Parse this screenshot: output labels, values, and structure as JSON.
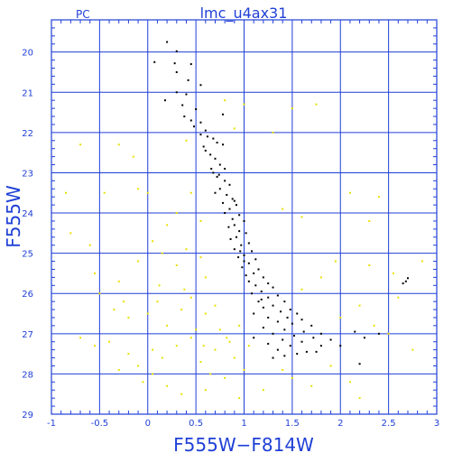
{
  "chart_data": {
    "type": "scatter",
    "title": "lmc_u4ax31",
    "subtitle": "PC",
    "xlabel": "F555W−F814W",
    "ylabel": "F555W",
    "xlim": [
      -1,
      3
    ],
    "ylim": [
      29,
      19.2
    ],
    "y_axis_inverted": true,
    "grid": true,
    "x_ticks": [
      -1,
      -0.5,
      0,
      0.5,
      1,
      1.5,
      2,
      2.5,
      3
    ],
    "x_tick_labels": [
      "-1",
      "-0.5",
      "0",
      "0.5",
      "1",
      "1.5",
      "2",
      "2.5",
      "3"
    ],
    "y_ticks": [
      20,
      21,
      22,
      23,
      24,
      25,
      26,
      27,
      28,
      29
    ],
    "y_tick_labels": [
      "20",
      "21",
      "22",
      "23",
      "24",
      "25",
      "26",
      "27",
      "28",
      "29"
    ],
    "colors": {
      "frame": "#1f3fd6",
      "series_main": "#000000",
      "series_field": "#e8e000"
    },
    "series": [
      {
        "color": "#000000",
        "points": [
          [
            0.2,
            19.75
          ],
          [
            0.3,
            19.98
          ],
          [
            0.07,
            20.25
          ],
          [
            0.28,
            20.28
          ],
          [
            0.45,
            20.3
          ],
          [
            0.3,
            20.5
          ],
          [
            0.42,
            20.7
          ],
          [
            0.55,
            20.82
          ],
          [
            0.3,
            21.0
          ],
          [
            0.4,
            21.05
          ],
          [
            0.18,
            21.2
          ],
          [
            0.36,
            21.32
          ],
          [
            0.5,
            21.42
          ],
          [
            0.38,
            21.6
          ],
          [
            0.45,
            21.7
          ],
          [
            0.55,
            21.75
          ],
          [
            0.78,
            21.55
          ],
          [
            0.6,
            21.95
          ],
          [
            0.48,
            21.85
          ],
          [
            0.55,
            22.05
          ],
          [
            0.62,
            22.1
          ],
          [
            0.68,
            22.15
          ],
          [
            0.72,
            22.25
          ],
          [
            0.78,
            22.3
          ],
          [
            0.6,
            22.45
          ],
          [
            0.65,
            22.55
          ],
          [
            0.7,
            22.65
          ],
          [
            0.75,
            22.8
          ],
          [
            0.8,
            22.9
          ],
          [
            0.68,
            23.0
          ],
          [
            0.72,
            23.1
          ],
          [
            0.8,
            23.2
          ],
          [
            0.85,
            23.3
          ],
          [
            0.75,
            23.4
          ],
          [
            0.7,
            23.5
          ],
          [
            0.82,
            23.55
          ],
          [
            0.88,
            23.65
          ],
          [
            0.78,
            23.75
          ],
          [
            0.92,
            23.8
          ],
          [
            0.85,
            23.9
          ],
          [
            0.8,
            24.0
          ],
          [
            0.95,
            24.05
          ],
          [
            0.88,
            24.15
          ],
          [
            1.0,
            24.2
          ],
          [
            0.9,
            24.3
          ],
          [
            0.84,
            24.35
          ],
          [
            0.95,
            24.45
          ],
          [
            1.02,
            24.5
          ],
          [
            0.92,
            24.6
          ],
          [
            0.86,
            24.65
          ],
          [
            1.05,
            24.75
          ],
          [
            0.97,
            24.8
          ],
          [
            0.9,
            24.9
          ],
          [
            1.08,
            24.95
          ],
          [
            1.0,
            25.05
          ],
          [
            0.94,
            25.1
          ],
          [
            1.12,
            25.15
          ],
          [
            1.05,
            25.25
          ],
          [
            0.98,
            25.35
          ],
          [
            1.15,
            25.4
          ],
          [
            1.1,
            25.5
          ],
          [
            1.02,
            25.55
          ],
          [
            1.2,
            25.6
          ],
          [
            1.05,
            25.7
          ],
          [
            1.25,
            25.75
          ],
          [
            1.12,
            25.8
          ],
          [
            1.3,
            25.85
          ],
          [
            1.18,
            25.95
          ],
          [
            1.08,
            26.0
          ],
          [
            1.35,
            26.05
          ],
          [
            1.25,
            26.1
          ],
          [
            1.15,
            26.2
          ],
          [
            1.42,
            26.2
          ],
          [
            1.3,
            26.3
          ],
          [
            1.2,
            26.35
          ],
          [
            1.48,
            26.4
          ],
          [
            1.38,
            26.45
          ],
          [
            1.1,
            26.5
          ],
          [
            1.55,
            26.5
          ],
          [
            1.45,
            26.6
          ],
          [
            1.25,
            26.6
          ],
          [
            1.6,
            26.65
          ],
          [
            1.35,
            26.7
          ],
          [
            1.5,
            26.75
          ],
          [
            1.7,
            26.8
          ],
          [
            1.2,
            26.85
          ],
          [
            1.42,
            26.9
          ],
          [
            1.62,
            26.95
          ],
          [
            1.8,
            27.0
          ],
          [
            1.3,
            27.0
          ],
          [
            1.52,
            27.05
          ],
          [
            1.72,
            27.1
          ],
          [
            1.1,
            27.1
          ],
          [
            1.4,
            27.15
          ],
          [
            1.9,
            27.15
          ],
          [
            1.6,
            27.2
          ],
          [
            1.25,
            27.25
          ],
          [
            1.48,
            27.3
          ],
          [
            1.8,
            27.3
          ],
          [
            2.0,
            27.3
          ],
          [
            1.35,
            27.4
          ],
          [
            1.65,
            27.45
          ],
          [
            1.55,
            27.5
          ],
          [
            1.42,
            27.55
          ],
          [
            1.75,
            27.45
          ],
          [
            1.3,
            27.6
          ],
          [
            2.2,
            27.75
          ],
          [
            2.25,
            27.1
          ],
          [
            2.4,
            27.0
          ],
          [
            2.15,
            26.95
          ],
          [
            2.65,
            25.75
          ],
          [
            2.7,
            25.62
          ],
          [
            2.68,
            25.7
          ],
          [
            1.0,
            25.2
          ],
          [
            0.9,
            23.7
          ],
          [
            0.66,
            22.9
          ],
          [
            0.58,
            22.35
          ],
          [
            0.74,
            23.05
          ],
          [
            0.96,
            24.95
          ],
          [
            1.18,
            26.15
          ]
        ]
      },
      {
        "color": "#e8e000",
        "points": [
          [
            -0.7,
            22.3
          ],
          [
            -0.3,
            22.3
          ],
          [
            -0.15,
            22.6
          ],
          [
            0.4,
            22.2
          ],
          [
            0.8,
            21.2
          ],
          [
            1.0,
            21.3
          ],
          [
            0.9,
            21.9
          ],
          [
            1.3,
            22.0
          ],
          [
            1.5,
            21.4
          ],
          [
            1.75,
            21.3
          ],
          [
            -0.85,
            23.5
          ],
          [
            -0.45,
            23.5
          ],
          [
            -0.1,
            23.4
          ],
          [
            0.0,
            23.5
          ],
          [
            0.45,
            23.5
          ],
          [
            0.3,
            24.0
          ],
          [
            0.55,
            24.2
          ],
          [
            0.2,
            24.3
          ],
          [
            1.4,
            23.9
          ],
          [
            1.6,
            24.1
          ],
          [
            2.1,
            23.5
          ],
          [
            2.3,
            24.2
          ],
          [
            2.4,
            23.6
          ],
          [
            -0.8,
            24.5
          ],
          [
            -0.6,
            24.8
          ],
          [
            -0.55,
            25.5
          ],
          [
            -0.3,
            25.7
          ],
          [
            -0.1,
            25.2
          ],
          [
            0.05,
            24.7
          ],
          [
            0.15,
            25.0
          ],
          [
            0.3,
            25.3
          ],
          [
            0.4,
            24.9
          ],
          [
            0.55,
            25.1
          ],
          [
            0.6,
            25.6
          ],
          [
            -0.5,
            26.0
          ],
          [
            -0.35,
            26.4
          ],
          [
            -0.2,
            26.6
          ],
          [
            0.0,
            26.5
          ],
          [
            0.1,
            26.2
          ],
          [
            0.2,
            26.8
          ],
          [
            0.35,
            26.4
          ],
          [
            0.45,
            26.1
          ],
          [
            0.5,
            26.9
          ],
          [
            0.6,
            26.5
          ],
          [
            0.7,
            26.3
          ],
          [
            0.75,
            26.9
          ],
          [
            0.85,
            27.2
          ],
          [
            0.95,
            26.8
          ],
          [
            1.05,
            27.3
          ],
          [
            -0.7,
            27.1
          ],
          [
            -0.55,
            27.3
          ],
          [
            -0.4,
            27.2
          ],
          [
            -0.2,
            27.5
          ],
          [
            -0.1,
            27.8
          ],
          [
            0.05,
            27.4
          ],
          [
            0.15,
            27.6
          ],
          [
            0.3,
            27.3
          ],
          [
            0.45,
            27.1
          ],
          [
            0.55,
            27.7
          ],
          [
            0.7,
            27.4
          ],
          [
            0.9,
            27.6
          ],
          [
            1.0,
            27.9
          ],
          [
            0.65,
            28.0
          ],
          [
            0.8,
            28.1
          ],
          [
            0.2,
            28.3
          ],
          [
            0.05,
            28.0
          ],
          [
            -0.05,
            28.2
          ],
          [
            0.6,
            28.4
          ],
          [
            1.5,
            28.1
          ],
          [
            1.7,
            28.3
          ],
          [
            1.9,
            27.8
          ],
          [
            2.0,
            26.6
          ],
          [
            2.2,
            26.3
          ],
          [
            2.35,
            26.8
          ],
          [
            2.5,
            27.0
          ],
          [
            2.6,
            26.1
          ],
          [
            2.75,
            27.4
          ],
          [
            2.85,
            25.2
          ],
          [
            2.55,
            25.5
          ],
          [
            2.3,
            25.3
          ],
          [
            1.8,
            25.6
          ],
          [
            1.95,
            25.2
          ],
          [
            1.6,
            25.9
          ],
          [
            2.1,
            28.2
          ],
          [
            2.2,
            28.6
          ],
          [
            0.95,
            28.6
          ],
          [
            1.2,
            28.4
          ],
          [
            0.35,
            28.5
          ],
          [
            -0.3,
            27.9
          ],
          [
            1.4,
            27.9
          ],
          [
            0.12,
            25.8
          ],
          [
            0.38,
            25.9
          ],
          [
            -0.25,
            26.2
          ],
          [
            0.58,
            27.3
          ],
          [
            0.82,
            27.1
          ]
        ]
      }
    ]
  }
}
